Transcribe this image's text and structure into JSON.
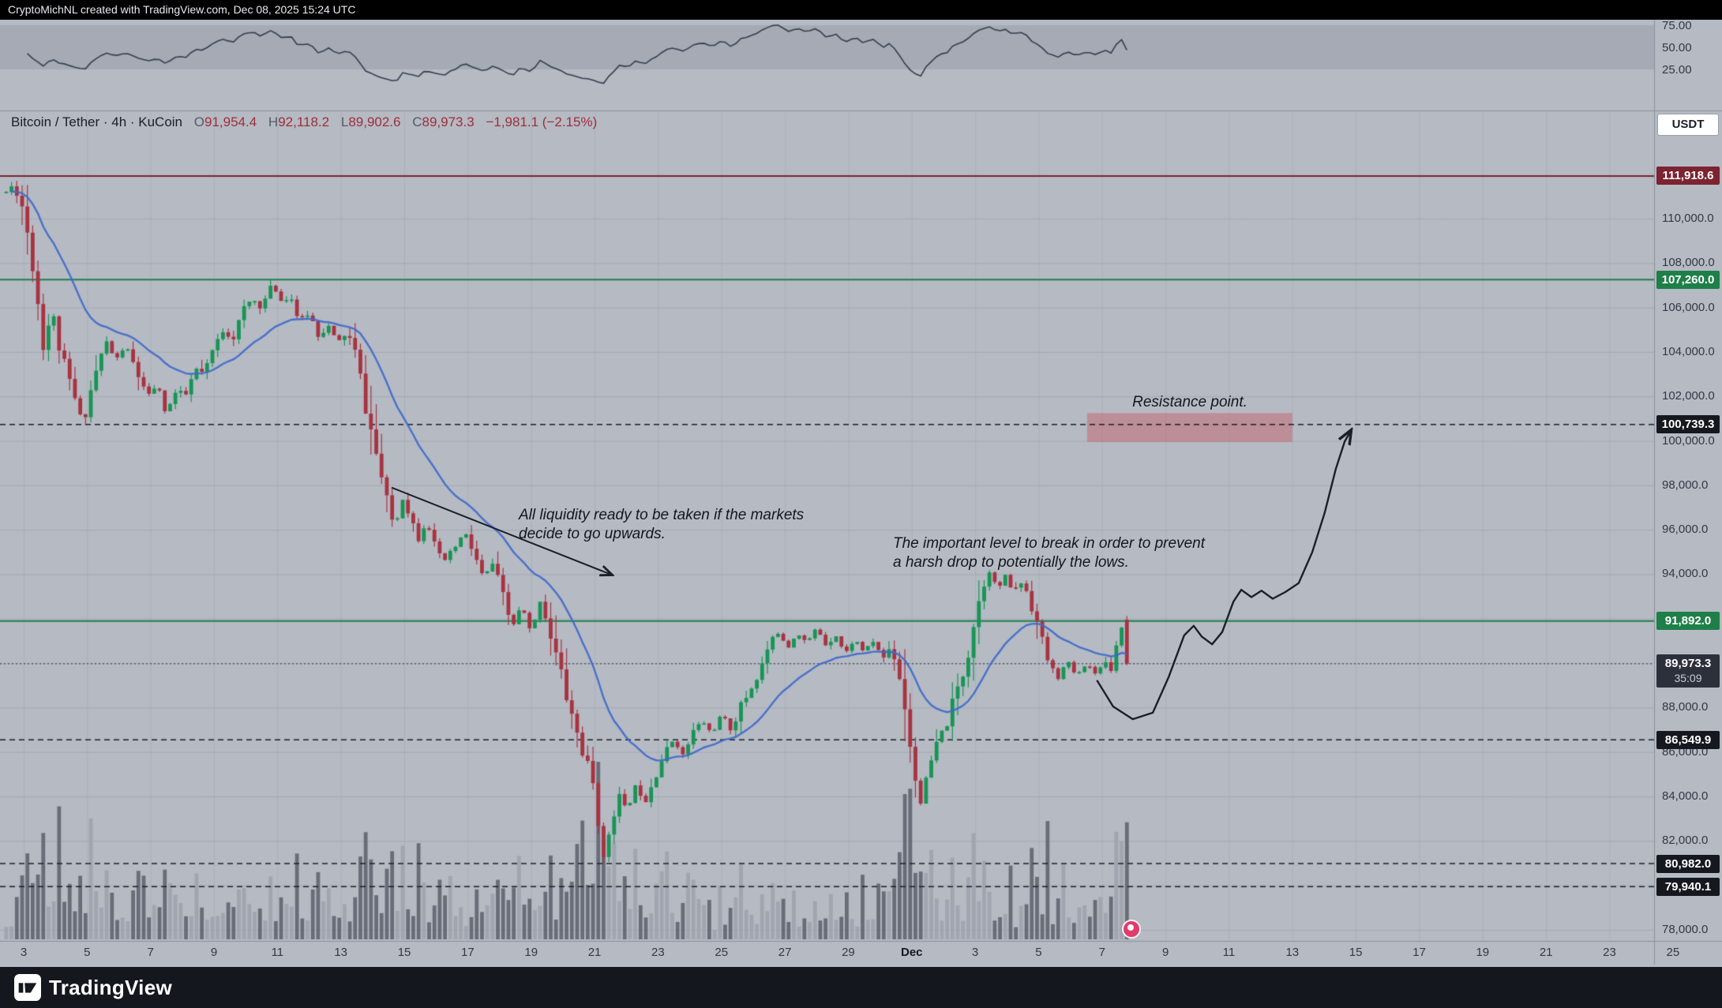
{
  "attribution": {
    "text": "CryptoMichNL created with TradingView.com, Dec 08, 2025 15:24 UTC"
  },
  "legend": {
    "series": "Bitcoin / Tether · 4h · KuCoin",
    "o_label": "O",
    "o": "91,954.4",
    "h_label": "H",
    "h": "92,118.2",
    "l_label": "L",
    "l": "89,902.6",
    "c_label": "C",
    "c": "89,973.3",
    "change": "−1,981.1 (−2.15%)"
  },
  "currency_button": {
    "label": "USDT"
  },
  "rsi_axis": {
    "ticks": [
      {
        "label": "75.00",
        "value": 75
      },
      {
        "label": "50.00",
        "value": 50
      },
      {
        "label": "25.00",
        "value": 25
      }
    ]
  },
  "price_axis": {
    "ticks": [
      {
        "label": "110,000.0",
        "price": 110000
      },
      {
        "label": "108,000.0",
        "price": 108000
      },
      {
        "label": "106,000.0",
        "price": 106000
      },
      {
        "label": "104,000.0",
        "price": 104000
      },
      {
        "label": "102,000.0",
        "price": 102000
      },
      {
        "label": "100,000.0",
        "price": 100000
      },
      {
        "label": "98,000.0",
        "price": 98000
      },
      {
        "label": "96,000.0",
        "price": 96000
      },
      {
        "label": "94,000.0",
        "price": 94000
      },
      {
        "label": "88,000.0",
        "price": 88000
      },
      {
        "label": "86,000.0",
        "price": 86000
      },
      {
        "label": "84,000.0",
        "price": 84000
      },
      {
        "label": "82,000.0",
        "price": 82000
      },
      {
        "label": "78,000.0",
        "price": 78000
      }
    ],
    "badges": [
      {
        "label": "111,918.6",
        "price": 111918.6,
        "color": "#7c2230"
      },
      {
        "label": "107,260.0",
        "price": 107260.0,
        "color": "#1e8048"
      },
      {
        "label": "100,739.3",
        "price": 100739.3,
        "color": "#15181e"
      },
      {
        "label": "91,892.0",
        "price": 91892.0,
        "color": "#1e8048"
      },
      {
        "label": "89,973.3",
        "price": 89973.3,
        "color": "#2b303b",
        "countdown": "35:09"
      },
      {
        "label": "86,549.9",
        "price": 86549.9,
        "color": "#15181e"
      },
      {
        "label": "80,982.0",
        "price": 80982.0,
        "color": "#15181e"
      },
      {
        "label": "79,940.1",
        "price": 79940.1,
        "color": "#15181e"
      }
    ]
  },
  "time_axis": {
    "labels": [
      {
        "label": "3",
        "d": 0
      },
      {
        "label": "5",
        "d": 2
      },
      {
        "label": "7",
        "d": 4
      },
      {
        "label": "9",
        "d": 6
      },
      {
        "label": "11",
        "d": 8
      },
      {
        "label": "13",
        "d": 10
      },
      {
        "label": "15",
        "d": 12
      },
      {
        "label": "17",
        "d": 14
      },
      {
        "label": "19",
        "d": 16
      },
      {
        "label": "21",
        "d": 18
      },
      {
        "label": "23",
        "d": 20
      },
      {
        "label": "25",
        "d": 22
      },
      {
        "label": "27",
        "d": 24
      },
      {
        "label": "29",
        "d": 26
      },
      {
        "label": "Dec",
        "d": 28,
        "strong": true
      },
      {
        "label": "3",
        "d": 30
      },
      {
        "label": "5",
        "d": 32
      },
      {
        "label": "7",
        "d": 34
      },
      {
        "label": "9",
        "d": 36
      },
      {
        "label": "11",
        "d": 38
      },
      {
        "label": "13",
        "d": 40
      },
      {
        "label": "15",
        "d": 42
      },
      {
        "label": "17",
        "d": 44
      },
      {
        "label": "19",
        "d": 46
      },
      {
        "label": "21",
        "d": 48
      },
      {
        "label": "23",
        "d": 50
      },
      {
        "label": "25",
        "d": 52
      }
    ]
  },
  "annotations": {
    "liquidity": {
      "line1": "All liquidity ready to be taken if the markets",
      "line2": "decide to go upwards."
    },
    "important_level": {
      "line1": "The important level to break in order to prevent",
      "line2": "a harsh drop to potentially the lows."
    },
    "resistance": {
      "text": "Resistance point."
    }
  },
  "footer": {
    "brand": "TradingView"
  },
  "chart_data": {
    "type": "candlestick",
    "title": "Bitcoin / Tether · 4h · KuCoin",
    "symbol": "BTC/USDT",
    "interval_hours": 4,
    "x_axis": "date (Nov 3 – Dec 25, 2025)",
    "y_axis": "price (USDT)",
    "y_range": [
      77500,
      114800
    ],
    "rsi_panel": {
      "indicator": "RSI",
      "period": 14,
      "band": [
        25,
        75
      ]
    },
    "last_candle": {
      "open": 91954.4,
      "high": 92118.2,
      "low": 89902.6,
      "close": 89973.3
    },
    "levels": [
      {
        "price": 111918.6,
        "style": "solid",
        "color": "#7c2230",
        "width": 2
      },
      {
        "price": 107260.0,
        "style": "solid",
        "color": "#1e8048",
        "width": 2
      },
      {
        "price": 100739.3,
        "style": "dashed",
        "color": "#1c2028",
        "width": 1.5
      },
      {
        "price": 91892.0,
        "style": "solid",
        "color": "#1e8048",
        "width": 2
      },
      {
        "price": 89973.3,
        "style": "dotted",
        "color": "#565c68",
        "width": 1.5
      },
      {
        "price": 86549.9,
        "style": "dashed",
        "color": "#1c2028",
        "width": 1.5
      },
      {
        "price": 80982.0,
        "style": "dashed",
        "color": "#1c2028",
        "width": 1.5
      },
      {
        "price": 79940.1,
        "style": "dashed",
        "color": "#1c2028",
        "width": 1.5
      }
    ],
    "resistance_zone": {
      "d_start": 33.53,
      "d_end": 40.0,
      "price_top": 101.25,
      "price_bottom": 99.95
    },
    "price_waypoints": [
      [
        -0.55,
        111.2
      ],
      [
        -0.3,
        111.55
      ],
      [
        0,
        110.4
      ],
      [
        0.3,
        108
      ],
      [
        0.62,
        104.3
      ],
      [
        0.9,
        105.9
      ],
      [
        1.2,
        103.6
      ],
      [
        1.5,
        102.4
      ],
      [
        1.87,
        100.75
      ],
      [
        2.2,
        102.8
      ],
      [
        2.6,
        104.5
      ],
      [
        2.9,
        103.6
      ],
      [
        3.2,
        104.3
      ],
      [
        3.6,
        103
      ],
      [
        3.9,
        101.9
      ],
      [
        4.2,
        102.6
      ],
      [
        4.48,
        101.25
      ],
      [
        4.8,
        102.2
      ],
      [
        5.1,
        102
      ],
      [
        5.4,
        103.2
      ],
      [
        5.7,
        103
      ],
      [
        6,
        104.2
      ],
      [
        6.3,
        105
      ],
      [
        6.6,
        104.6
      ],
      [
        6.9,
        105.8
      ],
      [
        7.2,
        106.4
      ],
      [
        7.5,
        106
      ],
      [
        7.84,
        107.1
      ],
      [
        8.1,
        106.3
      ],
      [
        8.4,
        106.6
      ],
      [
        8.7,
        105.3
      ],
      [
        9,
        105.8
      ],
      [
        9.3,
        104.7
      ],
      [
        9.6,
        105.2
      ],
      [
        9.9,
        104.4
      ],
      [
        10.2,
        104.9
      ],
      [
        10.45,
        103.9
      ],
      [
        10.7,
        102.2
      ],
      [
        11,
        100.1
      ],
      [
        11.2,
        98.9
      ],
      [
        11.45,
        97.2
      ],
      [
        11.7,
        96.1
      ],
      [
        11.95,
        97.4
      ],
      [
        12.2,
        96.6
      ],
      [
        12.45,
        95.6
      ],
      [
        12.7,
        96.5
      ],
      [
        12.95,
        95.3
      ],
      [
        13.2,
        94.5
      ],
      [
        13.5,
        95
      ],
      [
        13.9,
        95.9
      ],
      [
        14.2,
        94.9
      ],
      [
        14.5,
        93.8
      ],
      [
        14.8,
        94.5
      ],
      [
        15.1,
        93
      ],
      [
        15.4,
        91.6
      ],
      [
        15.7,
        92.6
      ],
      [
        16,
        91.3
      ],
      [
        16.3,
        92.9
      ],
      [
        16.55,
        91.6
      ],
      [
        16.8,
        90.3
      ],
      [
        17.1,
        88.6
      ],
      [
        17.4,
        87.1
      ],
      [
        17.7,
        85.6
      ],
      [
        18,
        84.3
      ],
      [
        18.3,
        80.95
      ],
      [
        18.5,
        82.8
      ],
      [
        18.75,
        84.1
      ],
      [
        19,
        83.3
      ],
      [
        19.3,
        84.5
      ],
      [
        19.6,
        83.8
      ],
      [
        19.9,
        85
      ],
      [
        20.2,
        85.9
      ],
      [
        20.5,
        86.6
      ],
      [
        20.8,
        85.8
      ],
      [
        21.1,
        86.9
      ],
      [
        21.4,
        87.4
      ],
      [
        21.7,
        86.8
      ],
      [
        22,
        87.7
      ],
      [
        22.3,
        87
      ],
      [
        22.6,
        88
      ],
      [
        22.9,
        88.8
      ],
      [
        23.2,
        89.6
      ],
      [
        23.5,
        90.8
      ],
      [
        23.8,
        91.4
      ],
      [
        24.1,
        90.7
      ],
      [
        24.4,
        91.4
      ],
      [
        24.7,
        90.9
      ],
      [
        25,
        91.6
      ],
      [
        25.3,
        90.8
      ],
      [
        25.6,
        91.3
      ],
      [
        25.9,
        90.4
      ],
      [
        26.2,
        91.1
      ],
      [
        26.5,
        90.5
      ],
      [
        26.8,
        91
      ],
      [
        27.1,
        90.2
      ],
      [
        27.35,
        90.8
      ],
      [
        27.6,
        89.6
      ],
      [
        27.85,
        87.6
      ],
      [
        28.1,
        84.9
      ],
      [
        28.3,
        83.7
      ],
      [
        28.55,
        85.3
      ],
      [
        28.8,
        86.3
      ],
      [
        29.1,
        87.3
      ],
      [
        29.4,
        88.6
      ],
      [
        29.7,
        90
      ],
      [
        30,
        92.2
      ],
      [
        30.25,
        93.5
      ],
      [
        30.45,
        94.2
      ],
      [
        30.7,
        93.3
      ],
      [
        30.95,
        93.9
      ],
      [
        31.2,
        93.2
      ],
      [
        31.5,
        93.7
      ],
      [
        31.8,
        92.6
      ],
      [
        32.1,
        91
      ],
      [
        32.35,
        89.9
      ],
      [
        32.6,
        89.3
      ],
      [
        32.9,
        90.1
      ],
      [
        33.2,
        89.4
      ],
      [
        33.5,
        90
      ],
      [
        33.8,
        89.5
      ],
      [
        34.05,
        90.1
      ],
      [
        34.3,
        89.8
      ],
      [
        34.55,
        91.5
      ],
      [
        34.75,
        91.95
      ],
      [
        34.9,
        89.97
      ]
    ],
    "projection_path": [
      [
        33.85,
        89.2
      ],
      [
        34.35,
        88.05
      ],
      [
        34.97,
        87.48
      ],
      [
        35.6,
        87.77
      ],
      [
        36.1,
        89.37
      ],
      [
        36.59,
        91.25
      ],
      [
        36.89,
        91.68
      ],
      [
        37.14,
        91.2
      ],
      [
        37.47,
        90.85
      ],
      [
        37.79,
        91.4
      ],
      [
        38.14,
        92.76
      ],
      [
        38.39,
        93.3
      ],
      [
        38.71,
        92.97
      ],
      [
        39.03,
        93.26
      ],
      [
        39.38,
        92.9
      ],
      [
        39.78,
        93.2
      ],
      [
        40.2,
        93.6
      ],
      [
        40.63,
        95
      ],
      [
        41.02,
        96.77
      ],
      [
        41.37,
        98.73
      ],
      [
        41.65,
        99.97
      ],
      [
        41.82,
        100.4
      ]
    ],
    "arrow": {
      "from": [
        11.6,
        97.9
      ],
      "to": [
        18.5,
        94.0
      ]
    },
    "volume_note": "unlabeled gray volume bars at base of pane; spikes at Nov 21 capitulation and Dec 1 drop"
  },
  "colors": {
    "bg": "#b5bac3",
    "panel_separator": "#8a919d",
    "grid_h": "rgba(30,34,45,0.10)",
    "grid_v": "rgba(30,34,45,0.06)",
    "rsi_band": "rgba(80,88,104,0.16)",
    "rsi_line": "#363d4c",
    "candle_up": "#179554",
    "candle_down": "#a83340",
    "vol_up": "rgba(158,163,173,0.9)",
    "vol_down": "rgba(96,101,112,0.9)",
    "ma_line": "#3d68cc",
    "zone_fill": "rgba(196,98,108,0.5)",
    "projection": "#1b1f27",
    "axis_text": "#343844"
  }
}
